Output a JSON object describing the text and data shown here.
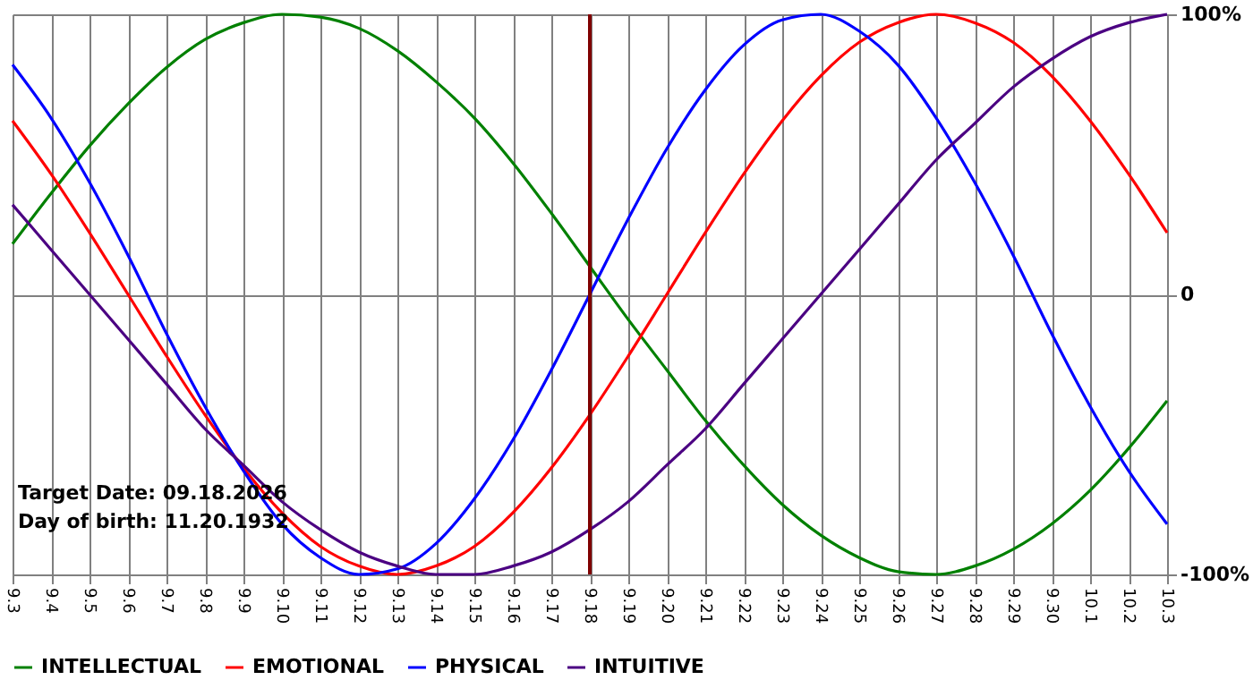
{
  "chart_data": {
    "type": "line",
    "categories": [
      "9.3",
      "9.4",
      "9.5",
      "9.6",
      "9.7",
      "9.8",
      "9.9",
      "9.10",
      "9.11",
      "9.12",
      "9.13",
      "9.14",
      "9.15",
      "9.16",
      "9.17",
      "9.18",
      "9.19",
      "9.20",
      "9.21",
      "9.22",
      "9.23",
      "9.24",
      "9.25",
      "9.26",
      "9.27",
      "9.28",
      "9.29",
      "9.30",
      "10.1",
      "10.2",
      "10.3"
    ],
    "series": [
      {
        "name": "INTELLECTUAL",
        "color": "#008000",
        "values": [
          18,
          36,
          53,
          68,
          81,
          91,
          97,
          100,
          99,
          95,
          87,
          76,
          63,
          47,
          29,
          10,
          -9,
          -27,
          -45,
          -61,
          -75,
          -86,
          -94,
          -99,
          -100,
          -97,
          -91,
          -82,
          -70,
          -55,
          -38
        ]
      },
      {
        "name": "EMOTIONAL",
        "color": "#ff0000",
        "values": [
          62,
          43,
          22,
          0,
          -22,
          -43,
          -62,
          -78,
          -90,
          -97,
          -100,
          -97,
          -90,
          -78,
          -62,
          -43,
          -22,
          0,
          22,
          43,
          62,
          78,
          90,
          97,
          100,
          97,
          90,
          78,
          62,
          43,
          22
        ]
      },
      {
        "name": "PHYSICAL",
        "color": "#0000ff",
        "values": [
          82,
          63,
          40,
          14,
          -14,
          -40,
          -63,
          -82,
          -94,
          -100,
          -98,
          -89,
          -73,
          -52,
          -27,
          0,
          27,
          52,
          73,
          89,
          98,
          100,
          94,
          82,
          63,
          40,
          14,
          -14,
          -40,
          -63,
          -82
        ]
      },
      {
        "name": "INTUITIVE",
        "color": "#4b0082",
        "values": [
          32,
          16,
          0,
          -16,
          -32,
          -48,
          -61,
          -74,
          -84,
          -92,
          -97,
          -100,
          -100,
          -97,
          -92,
          -84,
          -74,
          -61,
          -48,
          -32,
          -16,
          0,
          16,
          32,
          48,
          61,
          74,
          84,
          92,
          97,
          100
        ]
      }
    ],
    "ylim": [
      -100,
      100
    ],
    "yticks": [
      {
        "value": -100,
        "label": "-100%"
      },
      0,
      {
        "value": 100,
        "label": "100%"
      }
    ],
    "ref_lines": [
      {
        "axis": "x",
        "value": "9.18",
        "color": "#800000"
      }
    ],
    "annotations": [
      "Target Date: 09.18.2026",
      "Day of birth: 11.20.1932"
    ],
    "grid": true,
    "legend": "bottom",
    "marker": "none",
    "line_style": "solid"
  }
}
